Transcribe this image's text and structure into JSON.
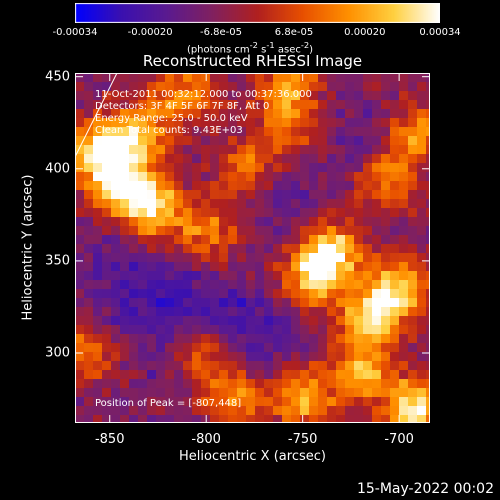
{
  "chart_data": {
    "type": "heatmap",
    "title": "Reconstructed RHESSI Image",
    "xlabel": "Heliocentric X (arcsec)",
    "ylabel": "Heliocentric Y (arcsec)",
    "xlim": [
      -868,
      -684
    ],
    "ylim": [
      262,
      452
    ],
    "xticks": [
      "-850",
      "-800",
      "-750",
      "-700"
    ],
    "xtick_values": [
      -850,
      -800,
      -750,
      -700
    ],
    "yticks": [
      "300",
      "350",
      "400",
      "450"
    ],
    "ytick_values": [
      300,
      350,
      400,
      450
    ],
    "colorbar": {
      "ticks": [
        "-0.00034",
        "-0.00020",
        "-6.8e-05",
        "6.8e-05",
        "0.00020",
        "0.00034"
      ],
      "tick_values": [
        -0.00034,
        -0.0002,
        -6.8e-05,
        6.8e-05,
        0.0002,
        0.00034
      ],
      "unit_prefix": "(photons cm",
      "unit_sup1": "-2",
      "unit_mid": " s",
      "unit_sup2": "-1",
      "unit_mid2": " asec",
      "unit_sup3": "-2",
      "unit_suffix": ")",
      "colors": [
        "#0000ff",
        "#3a10b0",
        "#5a1a90",
        "#802060",
        "#b02020",
        "#e85000",
        "#ff9000",
        "#ffd040",
        "#ffffff"
      ]
    },
    "hotspots": [
      {
        "x": -855,
        "y": 408,
        "level": 1.0
      },
      {
        "x": -842,
        "y": 390,
        "level": 0.9
      },
      {
        "x": -826,
        "y": 378,
        "level": 0.75
      },
      {
        "x": -835,
        "y": 420,
        "level": 0.7
      },
      {
        "x": -810,
        "y": 440,
        "level": 0.6
      },
      {
        "x": -756,
        "y": 446,
        "level": 0.65
      },
      {
        "x": -735,
        "y": 355,
        "level": 0.85
      },
      {
        "x": -745,
        "y": 340,
        "level": 0.75
      },
      {
        "x": -715,
        "y": 320,
        "level": 0.8
      },
      {
        "x": -700,
        "y": 335,
        "level": 0.8
      },
      {
        "x": -692,
        "y": 270,
        "level": 0.95
      },
      {
        "x": -720,
        "y": 290,
        "level": 0.7
      },
      {
        "x": -750,
        "y": 275,
        "level": 0.7
      },
      {
        "x": -785,
        "y": 275,
        "level": 0.6
      },
      {
        "x": -803,
        "y": 300,
        "level": 0.55
      },
      {
        "x": -690,
        "y": 420,
        "level": 0.6
      },
      {
        "x": -705,
        "y": 395,
        "level": 0.55
      },
      {
        "x": -800,
        "y": 365,
        "level": 0.5
      },
      {
        "x": -780,
        "y": 400,
        "level": 0.45
      },
      {
        "x": -860,
        "y": 300,
        "level": 0.5
      },
      {
        "x": -760,
        "y": 420,
        "level": 0.45
      }
    ],
    "coldspots": [
      {
        "x": -840,
        "y": 325,
        "level": 0.6
      },
      {
        "x": -815,
        "y": 335,
        "level": 0.7
      },
      {
        "x": -790,
        "y": 320,
        "level": 0.75
      },
      {
        "x": -770,
        "y": 310,
        "level": 0.6
      },
      {
        "x": -820,
        "y": 300,
        "level": 0.6
      },
      {
        "x": -760,
        "y": 385,
        "level": 0.5
      },
      {
        "x": -720,
        "y": 420,
        "level": 0.45
      },
      {
        "x": -850,
        "y": 350,
        "level": 0.5
      }
    ],
    "annotations": {
      "time": "11-Oct-2011 00:32:12.000 to 00:37:36.000",
      "detectors": "Detectors: 3F 4F 5F 6F 7F 8F, Att 0",
      "energy": "Energy Range: 25.0 - 50.0 keV",
      "clean": "Clean     Total counts: 9.43E+03",
      "peak": "Position of Peak = [-807,448]"
    }
  },
  "footer": "15-May-2022 00:02"
}
